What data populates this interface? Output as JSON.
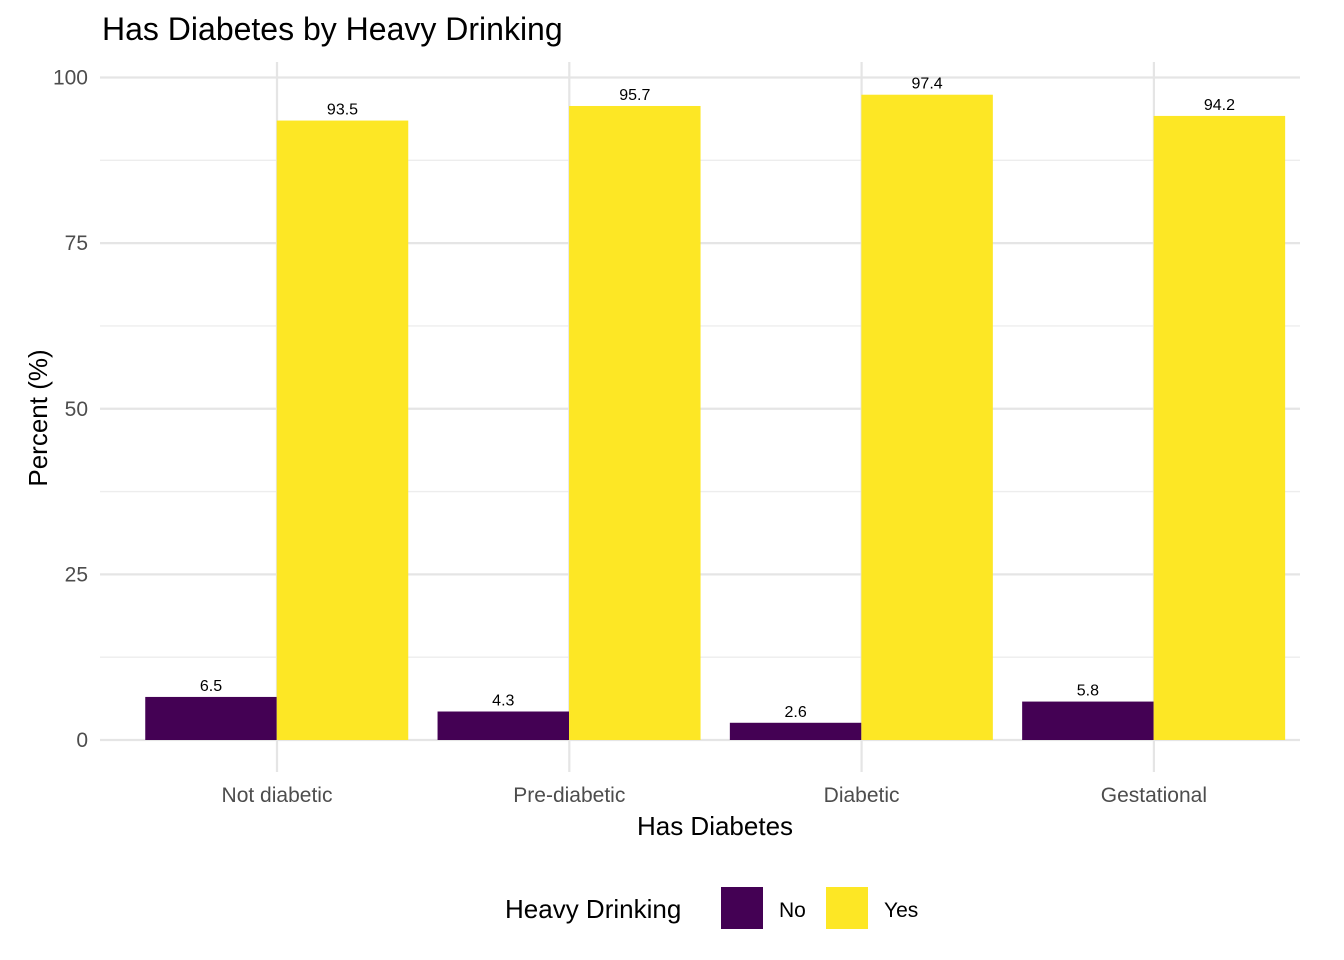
{
  "chart_data": {
    "type": "bar",
    "title": "Has Diabetes by Heavy Drinking",
    "xlabel": "Has Diabetes",
    "ylabel": "Percent (%)",
    "categories": [
      "Not diabetic",
      "Pre-diabetic",
      "Diabetic",
      "Gestational"
    ],
    "series": [
      {
        "name": "No",
        "color": "#440154",
        "values": [
          6.5,
          4.3,
          2.6,
          5.8
        ],
        "labels": [
          "6.5",
          "4.3",
          "2.6",
          "5.8"
        ]
      },
      {
        "name": "Yes",
        "color": "#FDE725",
        "values": [
          93.5,
          95.7,
          97.4,
          94.2
        ],
        "labels": [
          "93.5",
          "95.7",
          "97.4",
          "94.2"
        ]
      }
    ],
    "ylim": [
      0,
      100
    ],
    "yticks": [
      0,
      25,
      50,
      75,
      100
    ],
    "ytick_labels": [
      "0",
      "25",
      "50",
      "75",
      "100"
    ],
    "grid": true,
    "legend": {
      "title": "Heavy Drinking",
      "position": "bottom"
    }
  }
}
